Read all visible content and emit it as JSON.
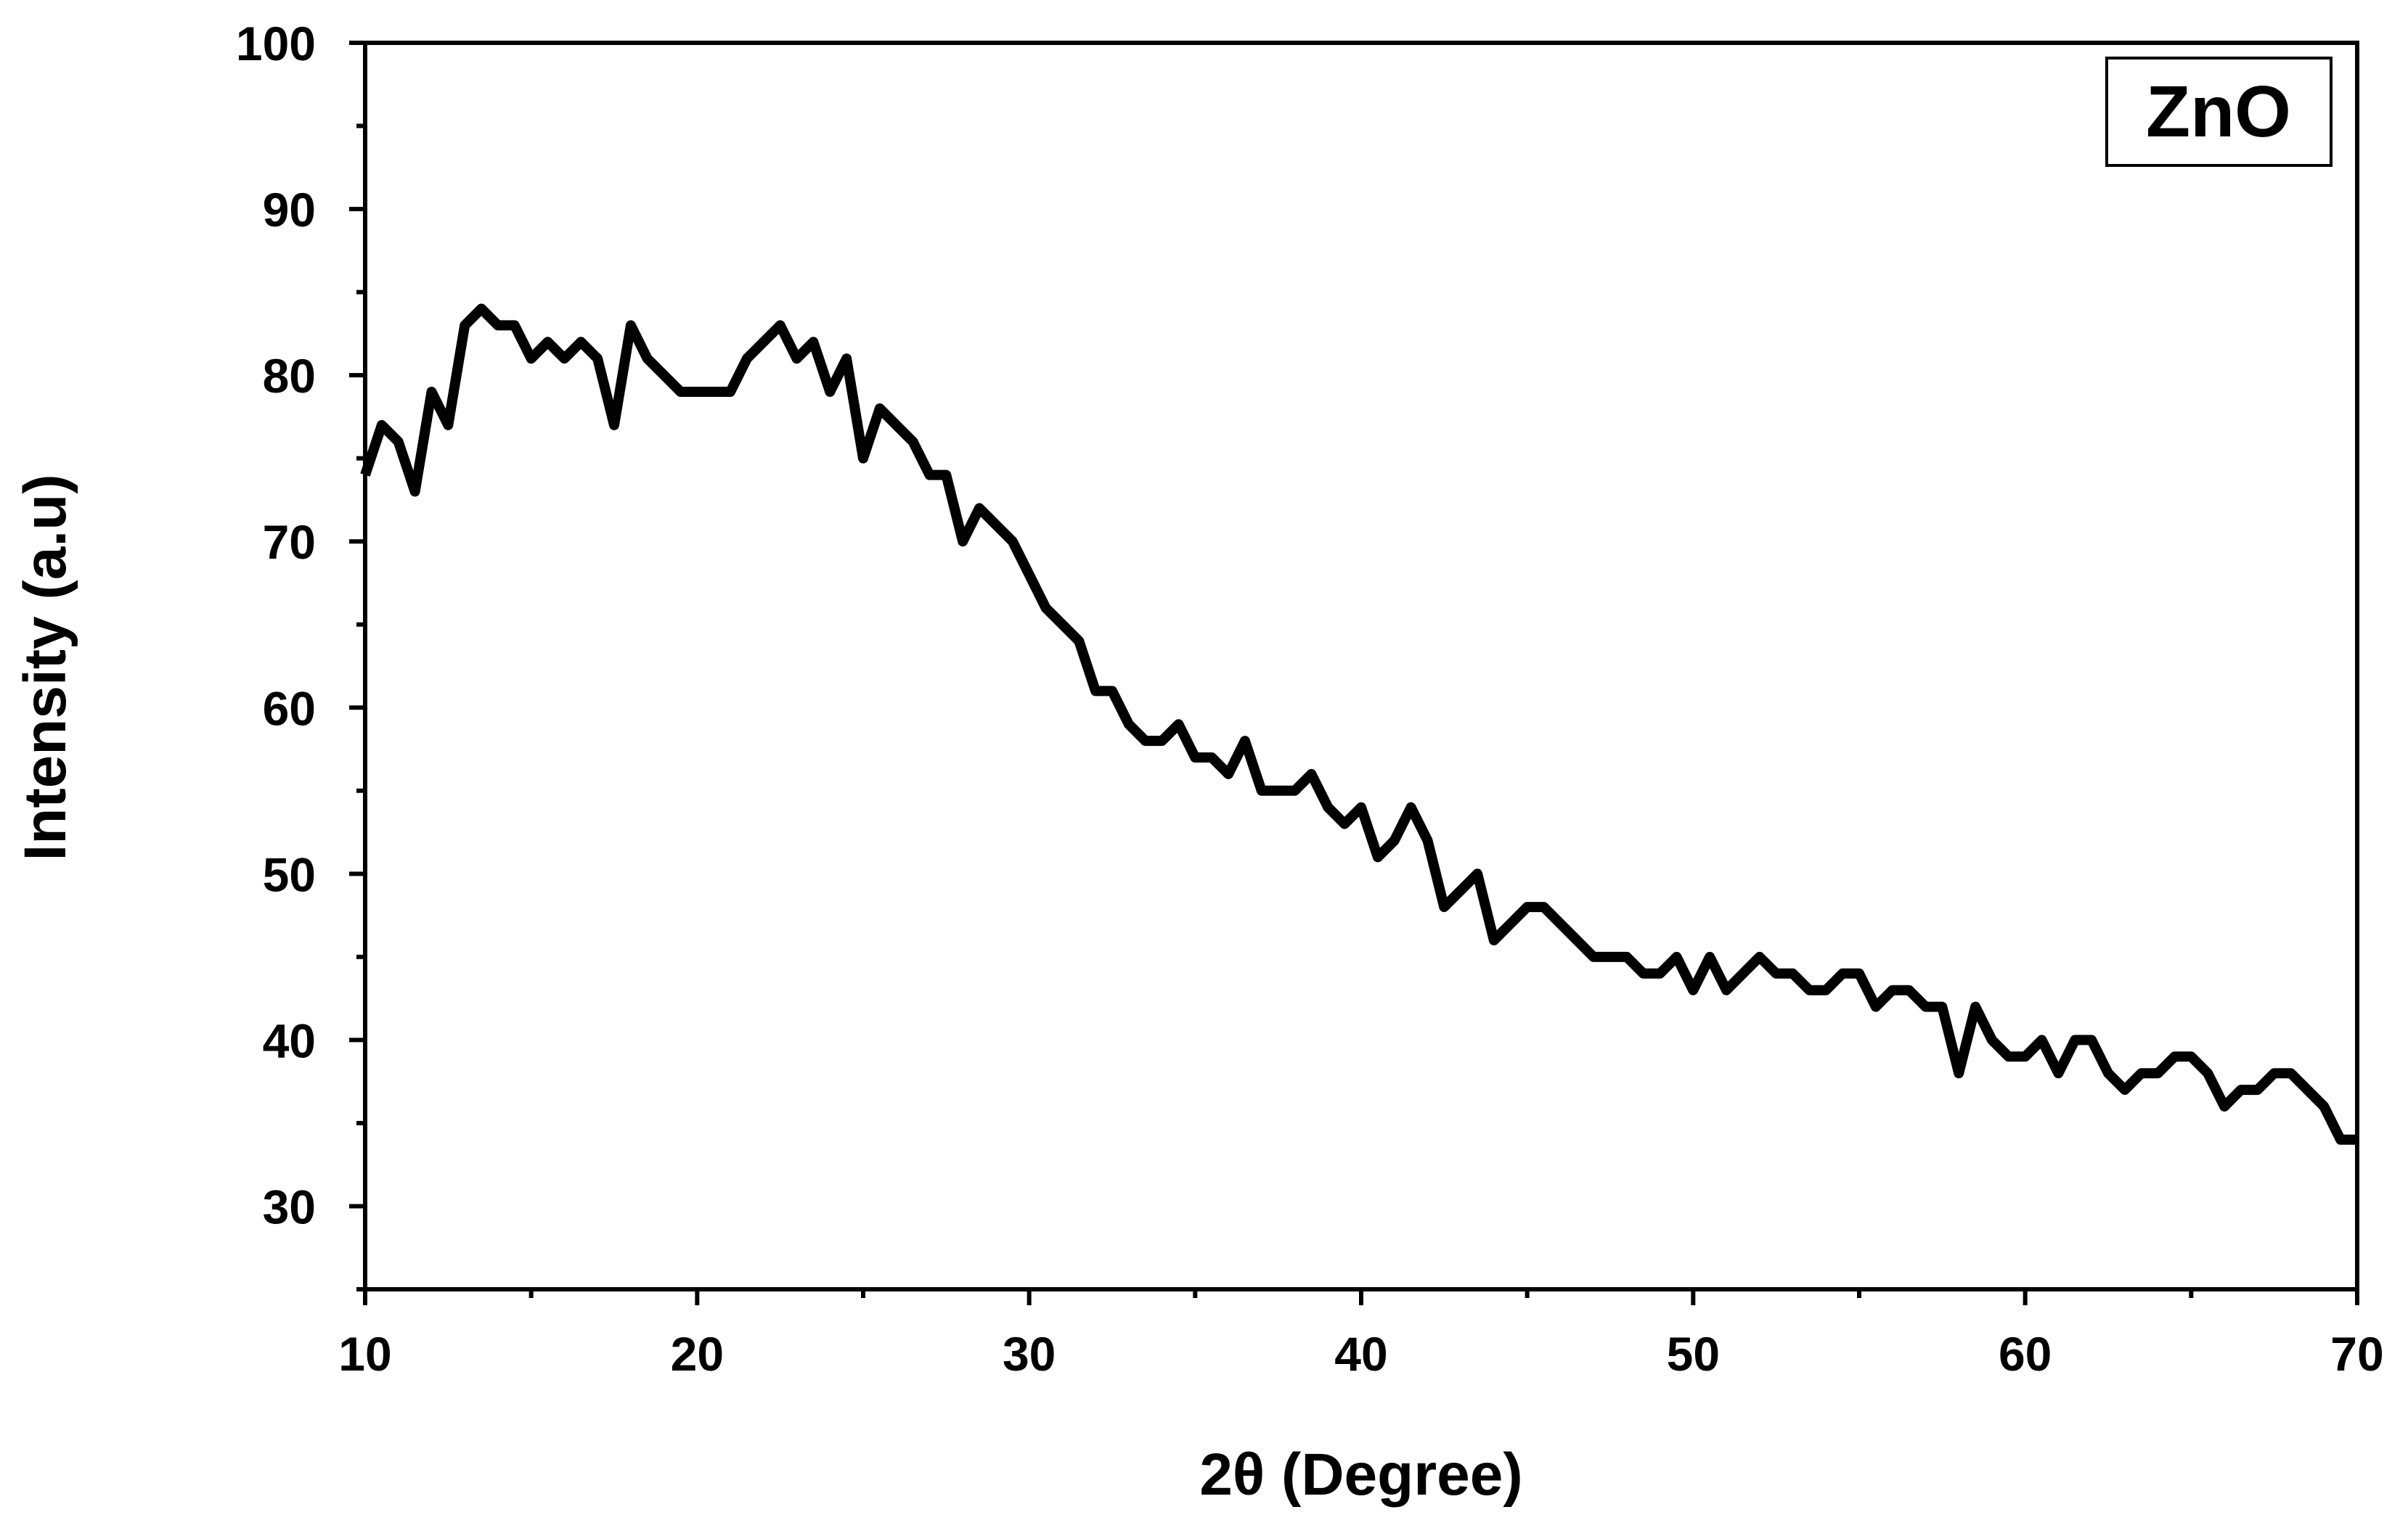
{
  "chart_data": {
    "type": "line",
    "xlabel": "2θ (Degree)",
    "ylabel": "Intensity (a.u)",
    "xlim": [
      10,
      70
    ],
    "ylim": [
      25,
      100
    ],
    "xticks": [
      10,
      20,
      30,
      40,
      50,
      60,
      70
    ],
    "yticks": [
      30,
      40,
      50,
      60,
      70,
      80,
      90,
      100
    ],
    "x_minor_ticks": [
      15,
      25,
      35,
      45,
      55,
      65
    ],
    "y_minor_ticks": [
      25,
      35,
      45,
      55,
      65,
      75,
      85,
      95
    ],
    "legend": "upper right",
    "x": [
      10,
      10.5,
      11,
      11.5,
      12,
      12.5,
      13,
      13.5,
      14,
      14.5,
      15,
      15.5,
      16,
      16.5,
      17,
      17.5,
      18,
      18.5,
      19,
      19.5,
      20,
      20.5,
      21,
      21.5,
      22,
      22.5,
      23,
      23.5,
      24,
      24.5,
      25,
      25.5,
      26,
      26.5,
      27,
      27.5,
      28,
      28.5,
      29,
      29.5,
      30,
      30.5,
      31,
      31.5,
      32,
      32.5,
      33,
      33.5,
      34,
      34.5,
      35,
      35.5,
      36,
      36.5,
      37,
      37.5,
      38,
      38.5,
      39,
      39.5,
      40,
      40.5,
      41,
      41.5,
      42,
      42.5,
      43,
      43.5,
      44,
      44.5,
      45,
      45.5,
      46,
      46.5,
      47,
      47.5,
      48,
      48.5,
      49,
      49.5,
      50,
      50.5,
      51,
      51.5,
      52,
      52.5,
      53,
      53.5,
      54,
      54.5,
      55,
      55.5,
      56,
      56.5,
      57,
      57.5,
      58,
      58.5,
      59,
      59.5,
      60,
      60.5,
      61,
      61.5,
      62,
      62.5,
      63,
      63.5,
      64,
      64.5,
      65,
      65.5,
      66,
      66.5,
      67,
      67.5,
      68,
      68.5,
      69,
      69.5,
      70
    ],
    "series": [
      {
        "name": "ZnO",
        "color": "#000000",
        "values": [
          74,
          77,
          76,
          73,
          79,
          77,
          83,
          84,
          83,
          83,
          81,
          82,
          81,
          82,
          81,
          77,
          83,
          81,
          80,
          79,
          79,
          79,
          79,
          81,
          82,
          83,
          81,
          82,
          79,
          81,
          75,
          78,
          77,
          76,
          74,
          74,
          70,
          72,
          71,
          70,
          68,
          66,
          65,
          64,
          61,
          61,
          59,
          58,
          58,
          59,
          57,
          57,
          56,
          58,
          55,
          55,
          55,
          56,
          54,
          53,
          54,
          51,
          52,
          54,
          52,
          48,
          49,
          50,
          46,
          47,
          48,
          48,
          47,
          46,
          45,
          45,
          45,
          44,
          44,
          45,
          43,
          45,
          43,
          44,
          45,
          44,
          44,
          43,
          43,
          44,
          44,
          42,
          43,
          43,
          42,
          42,
          38,
          42,
          40,
          39,
          39,
          40,
          38,
          40,
          40,
          38,
          37,
          38,
          38,
          39,
          39,
          38,
          36,
          37,
          37,
          38,
          38,
          37,
          36,
          34,
          34
        ]
      }
    ]
  }
}
